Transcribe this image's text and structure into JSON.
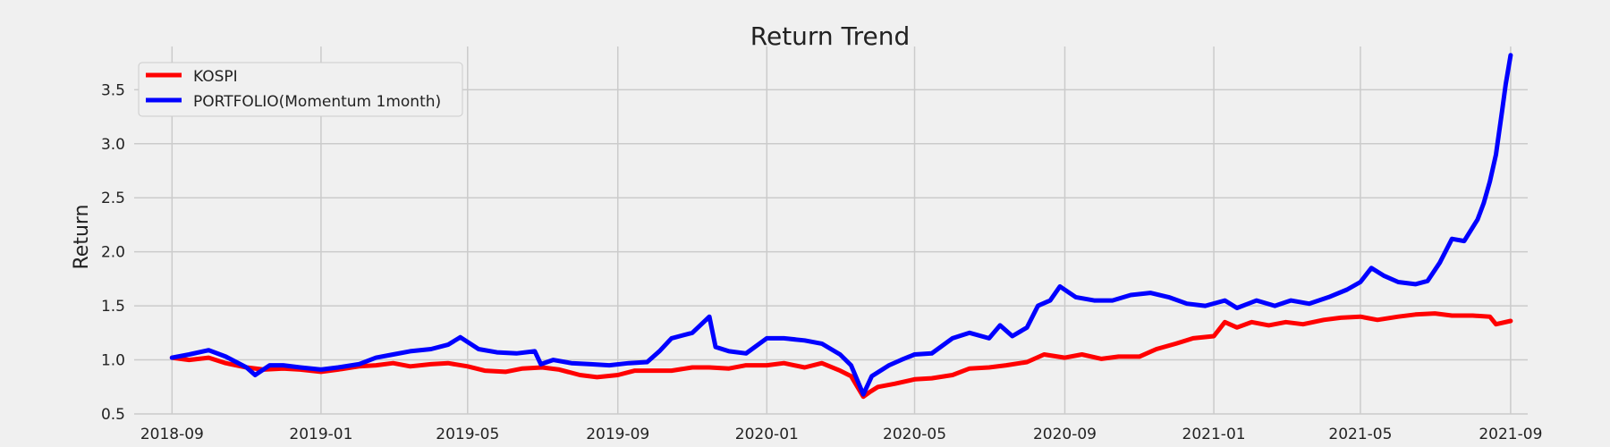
{
  "chart_data": {
    "type": "line",
    "title": "Return Trend",
    "xlabel": "",
    "ylabel": "Return",
    "xlim": [
      "2018-08-01",
      "2021-09-15"
    ],
    "ylim": [
      0.5,
      3.9
    ],
    "x_ticks": [
      "2018-09",
      "2019-01",
      "2019-05",
      "2019-09",
      "2020-01",
      "2020-05",
      "2020-09",
      "2021-01",
      "2021-05",
      "2021-09"
    ],
    "y_ticks": [
      "0.5",
      "1.0",
      "1.5",
      "2.0",
      "2.5",
      "3.0",
      "3.5"
    ],
    "grid": true,
    "legend_position": "top-left",
    "series": [
      {
        "name": "KOSPI",
        "color": "#ff0000",
        "points": [
          [
            "2018-09-01",
            1.02
          ],
          [
            "2018-09-15",
            1.0
          ],
          [
            "2018-10-01",
            1.02
          ],
          [
            "2018-10-15",
            0.97
          ],
          [
            "2018-11-01",
            0.93
          ],
          [
            "2018-11-15",
            0.91
          ],
          [
            "2018-12-01",
            0.92
          ],
          [
            "2018-12-15",
            0.91
          ],
          [
            "2019-01-01",
            0.89
          ],
          [
            "2019-01-15",
            0.91
          ],
          [
            "2019-02-01",
            0.94
          ],
          [
            "2019-02-15",
            0.95
          ],
          [
            "2019-03-01",
            0.97
          ],
          [
            "2019-03-15",
            0.94
          ],
          [
            "2019-04-01",
            0.96
          ],
          [
            "2019-04-15",
            0.97
          ],
          [
            "2019-05-01",
            0.94
          ],
          [
            "2019-05-15",
            0.9
          ],
          [
            "2019-06-01",
            0.89
          ],
          [
            "2019-06-15",
            0.92
          ],
          [
            "2019-07-01",
            0.93
          ],
          [
            "2019-07-15",
            0.91
          ],
          [
            "2019-08-01",
            0.86
          ],
          [
            "2019-08-15",
            0.84
          ],
          [
            "2019-09-01",
            0.86
          ],
          [
            "2019-09-15",
            0.9
          ],
          [
            "2019-10-01",
            0.9
          ],
          [
            "2019-10-15",
            0.9
          ],
          [
            "2019-11-01",
            0.93
          ],
          [
            "2019-11-15",
            0.93
          ],
          [
            "2019-12-01",
            0.92
          ],
          [
            "2019-12-15",
            0.95
          ],
          [
            "2020-01-01",
            0.95
          ],
          [
            "2020-01-15",
            0.97
          ],
          [
            "2020-02-01",
            0.93
          ],
          [
            "2020-02-15",
            0.97
          ],
          [
            "2020-03-01",
            0.9
          ],
          [
            "2020-03-10",
            0.85
          ],
          [
            "2020-03-20",
            0.66
          ],
          [
            "2020-03-25",
            0.7
          ],
          [
            "2020-04-01",
            0.75
          ],
          [
            "2020-04-15",
            0.78
          ],
          [
            "2020-05-01",
            0.82
          ],
          [
            "2020-05-15",
            0.83
          ],
          [
            "2020-06-01",
            0.86
          ],
          [
            "2020-06-15",
            0.92
          ],
          [
            "2020-07-01",
            0.93
          ],
          [
            "2020-07-15",
            0.95
          ],
          [
            "2020-08-01",
            0.98
          ],
          [
            "2020-08-15",
            1.05
          ],
          [
            "2020-09-01",
            1.02
          ],
          [
            "2020-09-15",
            1.05
          ],
          [
            "2020-10-01",
            1.01
          ],
          [
            "2020-10-15",
            1.03
          ],
          [
            "2020-11-01",
            1.03
          ],
          [
            "2020-11-15",
            1.1
          ],
          [
            "2020-12-01",
            1.15
          ],
          [
            "2020-12-15",
            1.2
          ],
          [
            "2021-01-01",
            1.22
          ],
          [
            "2021-01-10",
            1.35
          ],
          [
            "2021-01-20",
            1.3
          ],
          [
            "2021-02-01",
            1.35
          ],
          [
            "2021-02-15",
            1.32
          ],
          [
            "2021-03-01",
            1.35
          ],
          [
            "2021-03-15",
            1.33
          ],
          [
            "2021-04-01",
            1.37
          ],
          [
            "2021-04-15",
            1.39
          ],
          [
            "2021-05-01",
            1.4
          ],
          [
            "2021-05-15",
            1.37
          ],
          [
            "2021-06-01",
            1.4
          ],
          [
            "2021-06-15",
            1.42
          ],
          [
            "2021-07-01",
            1.43
          ],
          [
            "2021-07-15",
            1.41
          ],
          [
            "2021-08-01",
            1.41
          ],
          [
            "2021-08-15",
            1.4
          ],
          [
            "2021-08-20",
            1.33
          ],
          [
            "2021-09-01",
            1.36
          ]
        ]
      },
      {
        "name": "PORTFOLIO(Momentum 1month)",
        "color": "#0000ff",
        "points": [
          [
            "2018-09-01",
            1.02
          ],
          [
            "2018-09-15",
            1.05
          ],
          [
            "2018-10-01",
            1.09
          ],
          [
            "2018-10-15",
            1.03
          ],
          [
            "2018-11-01",
            0.93
          ],
          [
            "2018-11-08",
            0.86
          ],
          [
            "2018-11-20",
            0.95
          ],
          [
            "2018-12-01",
            0.95
          ],
          [
            "2018-12-15",
            0.93
          ],
          [
            "2019-01-01",
            0.91
          ],
          [
            "2019-01-15",
            0.93
          ],
          [
            "2019-02-01",
            0.96
          ],
          [
            "2019-02-15",
            1.02
          ],
          [
            "2019-03-01",
            1.05
          ],
          [
            "2019-03-15",
            1.08
          ],
          [
            "2019-04-01",
            1.1
          ],
          [
            "2019-04-15",
            1.14
          ],
          [
            "2019-04-25",
            1.21
          ],
          [
            "2019-05-10",
            1.1
          ],
          [
            "2019-05-25",
            1.07
          ],
          [
            "2019-06-10",
            1.06
          ],
          [
            "2019-06-25",
            1.08
          ],
          [
            "2019-06-30",
            0.96
          ],
          [
            "2019-07-10",
            1.0
          ],
          [
            "2019-07-25",
            0.97
          ],
          [
            "2019-08-10",
            0.96
          ],
          [
            "2019-08-25",
            0.95
          ],
          [
            "2019-09-10",
            0.97
          ],
          [
            "2019-09-25",
            0.98
          ],
          [
            "2019-10-05",
            1.08
          ],
          [
            "2019-10-15",
            1.2
          ],
          [
            "2019-11-01",
            1.25
          ],
          [
            "2019-11-15",
            1.4
          ],
          [
            "2019-11-20",
            1.12
          ],
          [
            "2019-12-01",
            1.08
          ],
          [
            "2019-12-15",
            1.06
          ],
          [
            "2020-01-01",
            1.2
          ],
          [
            "2020-01-15",
            1.2
          ],
          [
            "2020-02-01",
            1.18
          ],
          [
            "2020-02-15",
            1.15
          ],
          [
            "2020-03-01",
            1.05
          ],
          [
            "2020-03-10",
            0.95
          ],
          [
            "2020-03-20",
            0.68
          ],
          [
            "2020-03-27",
            0.85
          ],
          [
            "2020-04-10",
            0.95
          ],
          [
            "2020-04-20",
            1.0
          ],
          [
            "2020-05-01",
            1.05
          ],
          [
            "2020-05-15",
            1.06
          ],
          [
            "2020-06-01",
            1.2
          ],
          [
            "2020-06-15",
            1.25
          ],
          [
            "2020-07-01",
            1.2
          ],
          [
            "2020-07-10",
            1.32
          ],
          [
            "2020-07-20",
            1.22
          ],
          [
            "2020-08-01",
            1.3
          ],
          [
            "2020-08-10",
            1.5
          ],
          [
            "2020-08-20",
            1.55
          ],
          [
            "2020-08-28",
            1.68
          ],
          [
            "2020-09-10",
            1.58
          ],
          [
            "2020-09-25",
            1.55
          ],
          [
            "2020-10-10",
            1.55
          ],
          [
            "2020-10-25",
            1.6
          ],
          [
            "2020-11-10",
            1.62
          ],
          [
            "2020-11-25",
            1.58
          ],
          [
            "2020-12-10",
            1.52
          ],
          [
            "2020-12-25",
            1.5
          ],
          [
            "2021-01-10",
            1.55
          ],
          [
            "2021-01-20",
            1.48
          ],
          [
            "2021-02-05",
            1.55
          ],
          [
            "2021-02-20",
            1.5
          ],
          [
            "2021-03-05",
            1.55
          ],
          [
            "2021-03-20",
            1.52
          ],
          [
            "2021-04-05",
            1.58
          ],
          [
            "2021-04-20",
            1.65
          ],
          [
            "2021-05-01",
            1.72
          ],
          [
            "2021-05-10",
            1.85
          ],
          [
            "2021-05-20",
            1.78
          ],
          [
            "2021-06-01",
            1.72
          ],
          [
            "2021-06-15",
            1.7
          ],
          [
            "2021-06-25",
            1.73
          ],
          [
            "2021-07-05",
            1.9
          ],
          [
            "2021-07-15",
            2.12
          ],
          [
            "2021-07-25",
            2.1
          ],
          [
            "2021-08-05",
            2.3
          ],
          [
            "2021-08-10",
            2.45
          ],
          [
            "2021-08-15",
            2.65
          ],
          [
            "2021-08-20",
            2.9
          ],
          [
            "2021-08-25",
            3.3
          ],
          [
            "2021-08-28",
            3.55
          ],
          [
            "2021-09-01",
            3.82
          ]
        ]
      }
    ]
  }
}
